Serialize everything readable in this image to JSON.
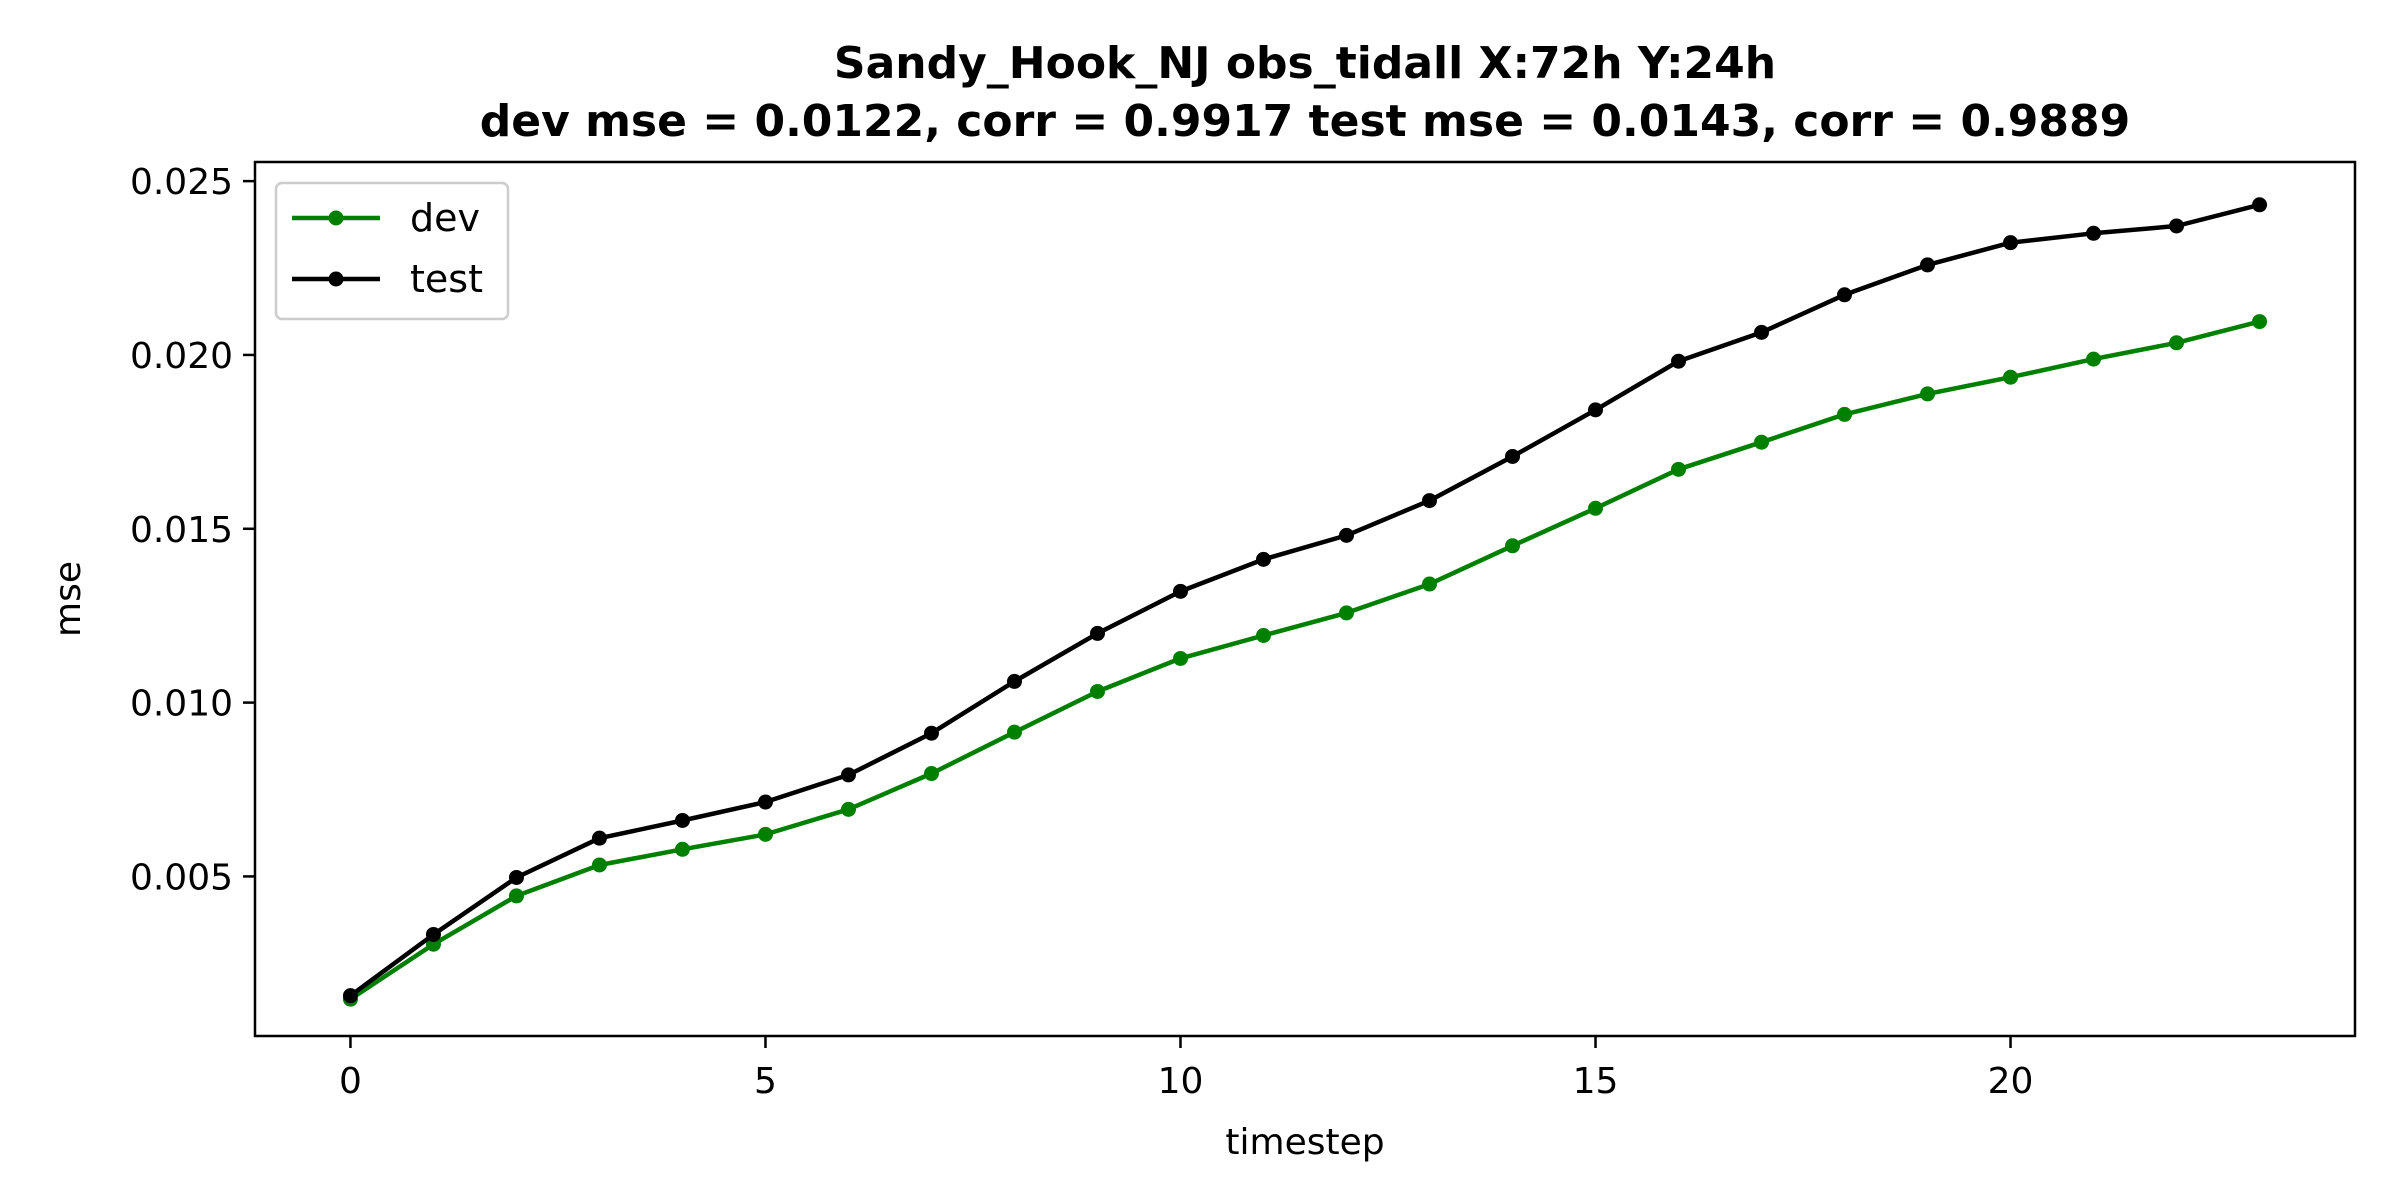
{
  "chart_data": {
    "type": "line",
    "title": "Sandy_Hook_NJ   obs_tidall   X:72h   Y:24h",
    "subtitle": "dev mse = 0.0122, corr = 0.9917   test mse = 0.0143, corr = 0.9889",
    "xlabel": "timestep",
    "ylabel": "mse",
    "xlim": [
      -1.15,
      24.15
    ],
    "ylim": [
      0.00041,
      0.02555
    ],
    "xticks": [
      0,
      5,
      10,
      15,
      20
    ],
    "xtick_labels": [
      "0",
      "5",
      "10",
      "15",
      "20"
    ],
    "yticks": [
      0.005,
      0.01,
      0.015,
      0.02,
      0.025
    ],
    "ytick_labels": [
      "0.005",
      "0.010",
      "0.015",
      "0.020",
      "0.025"
    ],
    "grid": false,
    "legend_position": "top-left",
    "x": [
      0,
      1,
      2,
      3,
      4,
      5,
      6,
      7,
      8,
      9,
      10,
      11,
      12,
      13,
      14,
      15,
      16,
      17,
      18,
      19,
      20,
      21,
      22,
      23
    ],
    "series": [
      {
        "name": "dev",
        "color": "#008000",
        "values": [
          0.00147,
          0.00305,
          0.00444,
          0.00533,
          0.00578,
          0.00621,
          0.00693,
          0.00796,
          0.00915,
          0.01032,
          0.01127,
          0.01193,
          0.01258,
          0.01341,
          0.01451,
          0.01559,
          0.01671,
          0.01749,
          0.01829,
          0.01888,
          0.01936,
          0.01988,
          0.02035,
          0.02096
        ]
      },
      {
        "name": "test",
        "color": "#000000",
        "values": [
          0.00157,
          0.00333,
          0.00497,
          0.0061,
          0.00661,
          0.00714,
          0.00792,
          0.00912,
          0.01061,
          0.01199,
          0.0132,
          0.01412,
          0.01481,
          0.01581,
          0.01708,
          0.01842,
          0.01982,
          0.02065,
          0.02173,
          0.02259,
          0.02323,
          0.0235,
          0.02371,
          0.02432
        ]
      }
    ]
  }
}
